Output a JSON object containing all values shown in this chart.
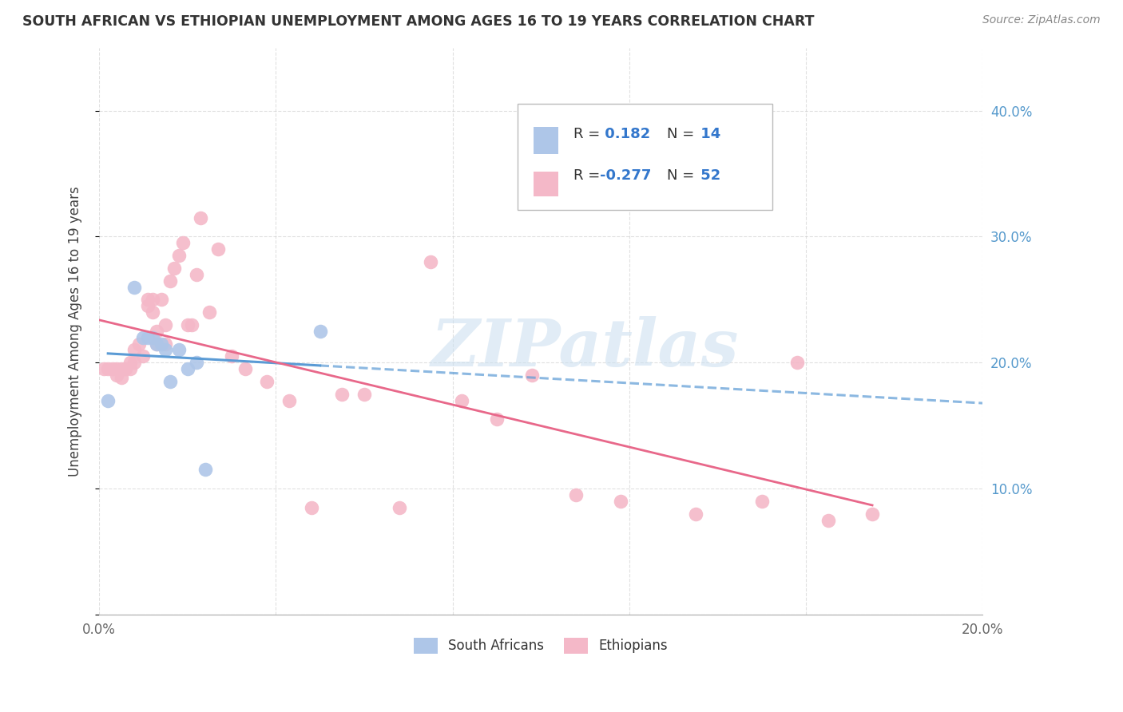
{
  "title": "SOUTH AFRICAN VS ETHIOPIAN UNEMPLOYMENT AMONG AGES 16 TO 19 YEARS CORRELATION CHART",
  "source": "Source: ZipAtlas.com",
  "ylabel": "Unemployment Among Ages 16 to 19 years",
  "xlim": [
    0.0,
    0.2
  ],
  "ylim": [
    0.0,
    0.45
  ],
  "xticks": [
    0.0,
    0.04,
    0.08,
    0.12,
    0.16,
    0.2
  ],
  "yticks": [
    0.0,
    0.1,
    0.2,
    0.3,
    0.4
  ],
  "south_african_x": [
    0.002,
    0.008,
    0.01,
    0.011,
    0.012,
    0.013,
    0.014,
    0.015,
    0.016,
    0.018,
    0.02,
    0.022,
    0.024,
    0.05
  ],
  "south_african_y": [
    0.17,
    0.26,
    0.22,
    0.22,
    0.22,
    0.215,
    0.215,
    0.21,
    0.185,
    0.21,
    0.195,
    0.2,
    0.115,
    0.225
  ],
  "ethiopian_x": [
    0.001,
    0.002,
    0.003,
    0.004,
    0.004,
    0.005,
    0.005,
    0.006,
    0.007,
    0.007,
    0.008,
    0.008,
    0.009,
    0.01,
    0.011,
    0.011,
    0.012,
    0.012,
    0.013,
    0.013,
    0.014,
    0.015,
    0.015,
    0.016,
    0.017,
    0.018,
    0.019,
    0.02,
    0.021,
    0.022,
    0.023,
    0.025,
    0.027,
    0.03,
    0.033,
    0.038,
    0.043,
    0.048,
    0.055,
    0.06,
    0.068,
    0.075,
    0.082,
    0.09,
    0.098,
    0.108,
    0.118,
    0.135,
    0.15,
    0.158,
    0.165,
    0.175
  ],
  "ethiopian_y": [
    0.195,
    0.195,
    0.195,
    0.195,
    0.19,
    0.195,
    0.188,
    0.195,
    0.2,
    0.195,
    0.21,
    0.2,
    0.215,
    0.205,
    0.25,
    0.245,
    0.25,
    0.24,
    0.215,
    0.225,
    0.25,
    0.23,
    0.215,
    0.265,
    0.275,
    0.285,
    0.295,
    0.23,
    0.23,
    0.27,
    0.315,
    0.24,
    0.29,
    0.205,
    0.195,
    0.185,
    0.17,
    0.085,
    0.175,
    0.175,
    0.085,
    0.28,
    0.17,
    0.155,
    0.19,
    0.095,
    0.09,
    0.08,
    0.09,
    0.2,
    0.075,
    0.08
  ],
  "R_sa": 0.182,
  "N_sa": 14,
  "R_eth": -0.277,
  "N_eth": 52,
  "sa_color": "#aec6e8",
  "eth_color": "#f4b8c8",
  "sa_line_color": "#5b9bd5",
  "eth_line_color": "#e8688a",
  "background_color": "#ffffff",
  "grid_color": "#cccccc",
  "watermark": "ZIPatlas",
  "watermark_color": "#cde0f0",
  "title_color": "#333333",
  "source_color": "#888888",
  "ylabel_color": "#444444",
  "tick_color": "#666666",
  "right_tick_color": "#5599cc",
  "legend_text_color": "#333333",
  "legend_value_color": "#3377cc"
}
